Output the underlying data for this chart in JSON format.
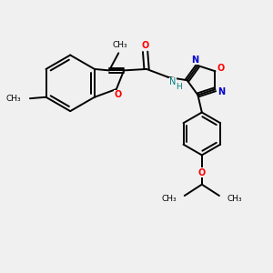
{
  "bg_color": "#f0f0f0",
  "atom_color_O": "#ff0000",
  "atom_color_N": "#0000cc",
  "atom_color_H": "#008080",
  "bond_color": "#000000",
  "bond_width": 1.4,
  "fig_width": 3.0,
  "fig_height": 3.0,
  "dpi": 100,
  "xlim": [
    0,
    10
  ],
  "ylim": [
    0,
    10
  ]
}
